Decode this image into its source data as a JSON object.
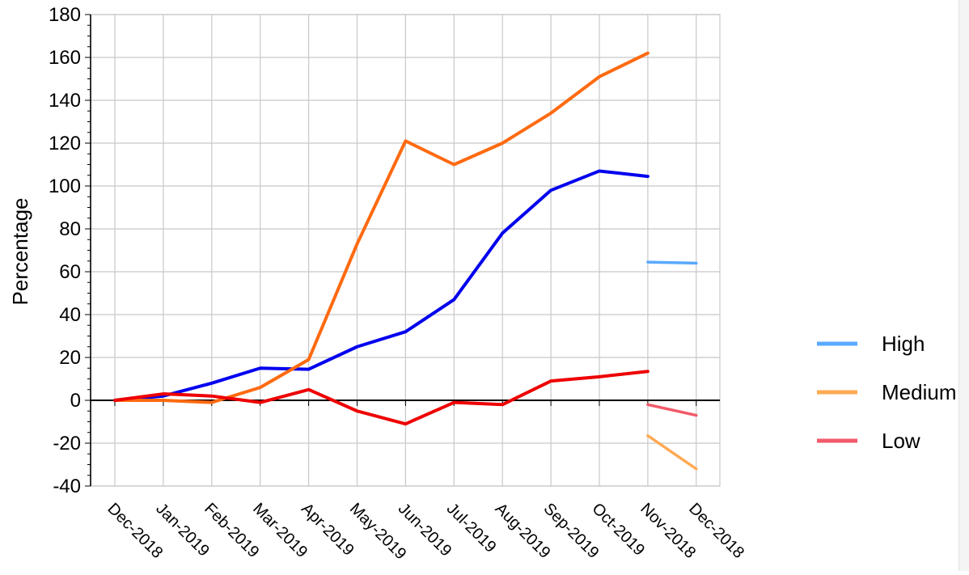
{
  "chart_data": {
    "type": "line",
    "title": "",
    "ylabel": "Percentage",
    "xlabel": "",
    "ylim": [
      -40,
      180
    ],
    "yticks": [
      -40,
      -20,
      0,
      20,
      40,
      60,
      80,
      100,
      120,
      140,
      160,
      180
    ],
    "categories": [
      "Dec-2018",
      "Jan-2019",
      "Feb-2019",
      "Mar-2019",
      "Apr-2019",
      "May-2019",
      "Jun-2019",
      "Jul-2019",
      "Aug-2019",
      "Sep-2019",
      "Oct-2019",
      "Nov-2018",
      "Dec-2018"
    ],
    "grid": true,
    "legend_position": "right",
    "main_series": [
      {
        "name": "blue",
        "color": "#0000ee",
        "values": [
          0,
          2,
          8,
          15,
          14.5,
          25,
          32,
          47,
          78,
          98,
          107,
          104.5,
          null
        ]
      },
      {
        "name": "orange",
        "color": "#ff6a10",
        "values": [
          0,
          0,
          -1,
          6,
          19,
          73,
          121,
          110,
          120,
          134,
          151,
          162,
          null
        ]
      },
      {
        "name": "red",
        "color": "#ee0000",
        "values": [
          0,
          3,
          2,
          -1,
          5,
          -5,
          -11,
          -1,
          -2,
          9,
          11,
          13.5,
          null
        ]
      }
    ],
    "series": [
      {
        "name": "High",
        "color": "#5aa9ff",
        "values": [
          null,
          null,
          null,
          null,
          null,
          null,
          null,
          null,
          null,
          null,
          null,
          64.5,
          64
        ]
      },
      {
        "name": "Medium",
        "color": "#ffaa55",
        "values": [
          null,
          null,
          null,
          null,
          null,
          null,
          null,
          null,
          null,
          null,
          null,
          -16.5,
          -32
        ]
      },
      {
        "name": "Low",
        "color": "#f25a6a",
        "values": [
          null,
          null,
          null,
          null,
          null,
          null,
          null,
          null,
          null,
          null,
          null,
          -2,
          -7
        ]
      }
    ]
  }
}
